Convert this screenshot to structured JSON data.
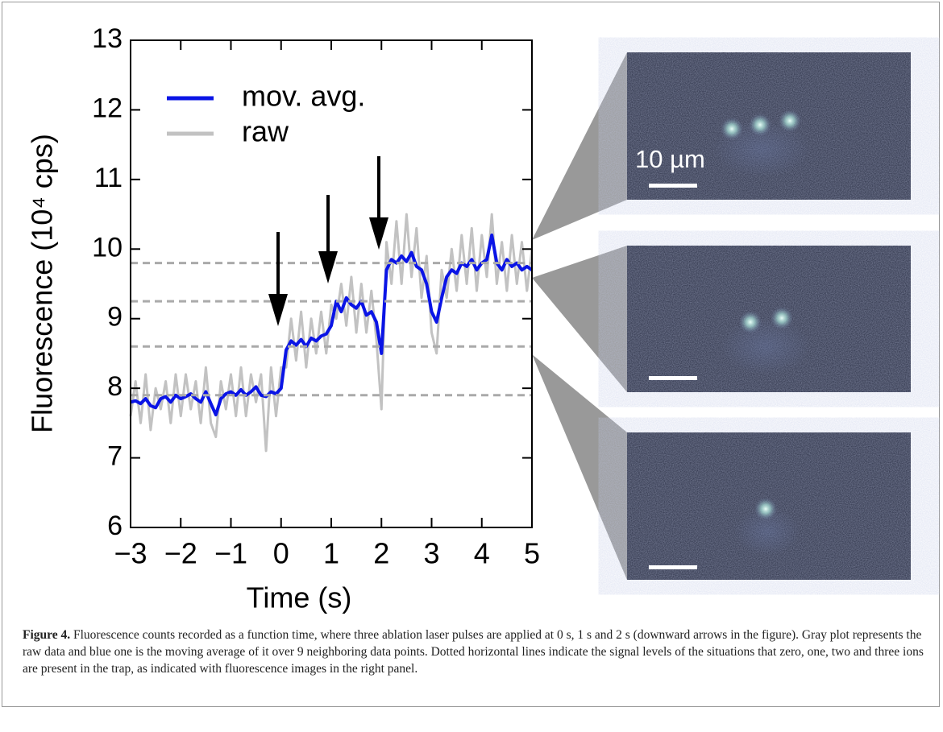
{
  "chart_data": {
    "type": "line",
    "xlabel": "Time (s)",
    "ylabel": "Fluorescence (10⁴ cps)",
    "x": [
      -3.0,
      -2.9,
      -2.8,
      -2.7,
      -2.6,
      -2.5,
      -2.4,
      -2.3,
      -2.2,
      -2.1,
      -2.0,
      -1.9,
      -1.8,
      -1.7,
      -1.6,
      -1.5,
      -1.4,
      -1.3,
      -1.2,
      -1.1,
      -1.0,
      -0.9,
      -0.8,
      -0.7,
      -0.6,
      -0.5,
      -0.4,
      -0.3,
      -0.2,
      -0.1,
      0.0,
      0.1,
      0.2,
      0.3,
      0.4,
      0.5,
      0.6,
      0.7,
      0.8,
      0.9,
      1.0,
      1.1,
      1.2,
      1.3,
      1.4,
      1.5,
      1.6,
      1.7,
      1.8,
      1.9,
      2.0,
      2.1,
      2.2,
      2.3,
      2.4,
      2.5,
      2.6,
      2.7,
      2.8,
      2.9,
      3.0,
      3.1,
      3.2,
      3.3,
      3.4,
      3.5,
      3.6,
      3.7,
      3.8,
      3.9,
      4.0,
      4.1,
      4.2,
      4.3,
      4.4,
      4.5,
      4.6,
      4.7,
      4.8,
      4.9,
      5.0
    ],
    "series": [
      {
        "name": "raw",
        "color": "#c2c2c2",
        "values": [
          7.6,
          8.1,
          7.5,
          8.2,
          7.4,
          8.0,
          7.7,
          8.1,
          7.5,
          8.2,
          7.6,
          8.2,
          7.7,
          8.1,
          7.5,
          8.3,
          7.5,
          7.3,
          8.1,
          7.7,
          8.2,
          7.6,
          8.3,
          7.6,
          8.2,
          7.8,
          8.2,
          7.1,
          8.3,
          7.6,
          8.3,
          8.3,
          9.0,
          8.4,
          9.1,
          8.3,
          9.0,
          8.5,
          9.1,
          8.5,
          9.2,
          9.0,
          9.5,
          8.9,
          9.6,
          8.8,
          9.5,
          8.8,
          9.4,
          8.7,
          7.7,
          10.1,
          9.5,
          10.4,
          9.5,
          10.5,
          9.6,
          10.3,
          9.3,
          9.9,
          8.8,
          8.5,
          9.7,
          9.3,
          10.0,
          9.4,
          10.2,
          9.5,
          10.3,
          9.4,
          10.2,
          9.6,
          10.5,
          9.5,
          10.1,
          9.4,
          10.2,
          9.5,
          10.1,
          9.4,
          10.0
        ]
      },
      {
        "name": "mov. avg.",
        "color": "#0a14e6",
        "values": [
          7.8,
          7.82,
          7.78,
          7.85,
          7.75,
          7.72,
          7.85,
          7.88,
          7.8,
          7.9,
          7.85,
          7.88,
          7.92,
          7.85,
          7.8,
          7.95,
          7.78,
          7.62,
          7.85,
          7.92,
          7.95,
          7.9,
          7.98,
          7.9,
          7.95,
          8.02,
          7.9,
          7.88,
          7.95,
          7.92,
          8.0,
          8.55,
          8.68,
          8.62,
          8.7,
          8.6,
          8.72,
          8.68,
          8.75,
          8.78,
          8.9,
          9.25,
          9.1,
          9.3,
          9.2,
          9.15,
          9.25,
          9.05,
          9.1,
          8.95,
          8.5,
          9.7,
          9.85,
          9.8,
          9.9,
          9.82,
          9.95,
          9.75,
          9.7,
          9.5,
          9.1,
          8.95,
          9.3,
          9.6,
          9.7,
          9.65,
          9.8,
          9.75,
          9.85,
          9.7,
          9.8,
          9.85,
          10.2,
          9.8,
          9.7,
          9.85,
          9.75,
          9.8,
          9.7,
          9.75,
          9.7
        ]
      }
    ],
    "reference_lines": [
      7.9,
      8.6,
      9.25,
      9.8
    ],
    "xlim": [
      -3,
      5
    ],
    "ylim": [
      6,
      13
    ],
    "xticks": [
      {
        "value": -3,
        "label": "−3"
      },
      {
        "value": -2,
        "label": "−2"
      },
      {
        "value": -1,
        "label": "−1"
      },
      0,
      1,
      2,
      3,
      4,
      5
    ],
    "yticks": [
      6,
      7,
      8,
      9,
      10,
      11,
      12,
      13
    ],
    "legend": "upper left",
    "grid": false
  },
  "panel": {
    "scale_label": "10 µm"
  },
  "caption": {
    "label": "Figure 4.",
    "text": "Fluorescence counts recorded as a function time, where three ablation laser pulses are applied at 0 s, 1 s and 2 s (downward arrows in the figure). Gray plot represents the raw data and blue one is the moving average of it over 9 neighboring data points. Dotted horizontal lines indicate the signal levels of the situations that zero, one, two and three ions are present in the trap, as indicated with fluorescence images in the right panel."
  }
}
